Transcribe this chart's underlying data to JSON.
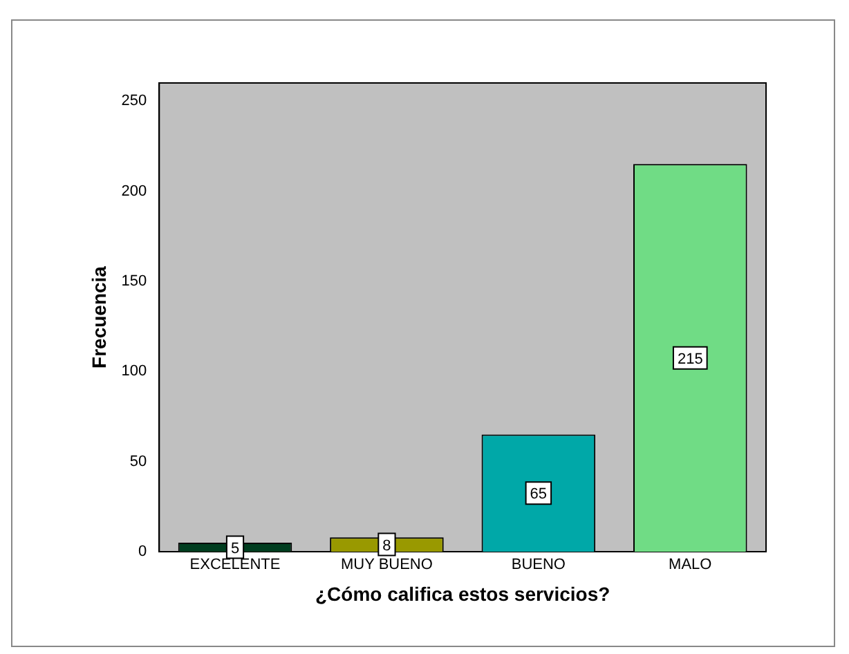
{
  "chart_data": {
    "type": "bar",
    "xlabel": "¿Cómo califica estos servicios?",
    "ylabel": "Frecuencia",
    "categories": [
      "EXCELENTE",
      "MUY BUENO",
      "BUENO",
      "MALO"
    ],
    "values": [
      5,
      8,
      65,
      215
    ],
    "colors": [
      "#003d1f",
      "#999900",
      "#00a8a8",
      "#70dc85"
    ],
    "ylim": [
      0,
      260
    ],
    "yticks": [
      0,
      50,
      100,
      150,
      200,
      250
    ],
    "grid": false,
    "legend": false,
    "data_labels": true
  }
}
